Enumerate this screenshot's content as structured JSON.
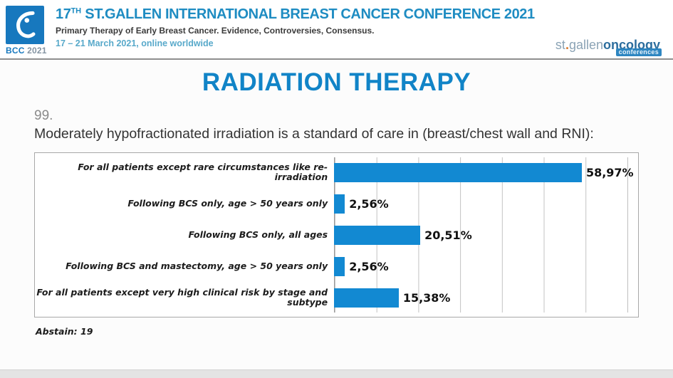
{
  "header": {
    "logo": {
      "bcc": "BCC",
      "year": "2021"
    },
    "title_prefix": "17",
    "title_sup": "TH",
    "title_rest": " ST.GALLEN INTERNATIONAL BREAST CANCER CONFERENCE 2021",
    "subtitle": "Primary Therapy of Early Breast Cancer. Evidence, Controversies, Consensus.",
    "dates": "17 – 21 March 2021, online worldwide",
    "right_logo": {
      "part1": "st",
      "dot": ".",
      "part2": "gallen",
      "part3": "oncology",
      "badge": "conferences"
    }
  },
  "main": {
    "section_title": "RADIATION THERAPY",
    "question_number": "99.",
    "question_text": "Moderately hypofractionated irradiation is a standard of care in (breast/chest wall and RNI):",
    "abstain": "Abstain: 19"
  },
  "chart_data": {
    "type": "bar",
    "orientation": "horizontal",
    "title": "",
    "categories": [
      "For all patients except rare circumstances like re-irradiation",
      "Following BCS only, age > 50 years only",
      "Following BCS only, all ages",
      "Following BCS and mastectomy, age > 50 years only",
      "For all patients except very high clinical risk by stage and subtype"
    ],
    "values": [
      58.97,
      2.56,
      20.51,
      2.56,
      15.38
    ],
    "value_labels": [
      "58,97%",
      "2,56%",
      "20,51%",
      "2,56%",
      "15,38%"
    ],
    "xlim": [
      0,
      70
    ],
    "gridline_interval": 10,
    "grid": true,
    "legend": false,
    "bar_color": "#1289d2"
  },
  "colors": {
    "accent_blue": "#1184c7",
    "header_blue": "#1e8cc2",
    "bar_blue": "#1289d2"
  }
}
